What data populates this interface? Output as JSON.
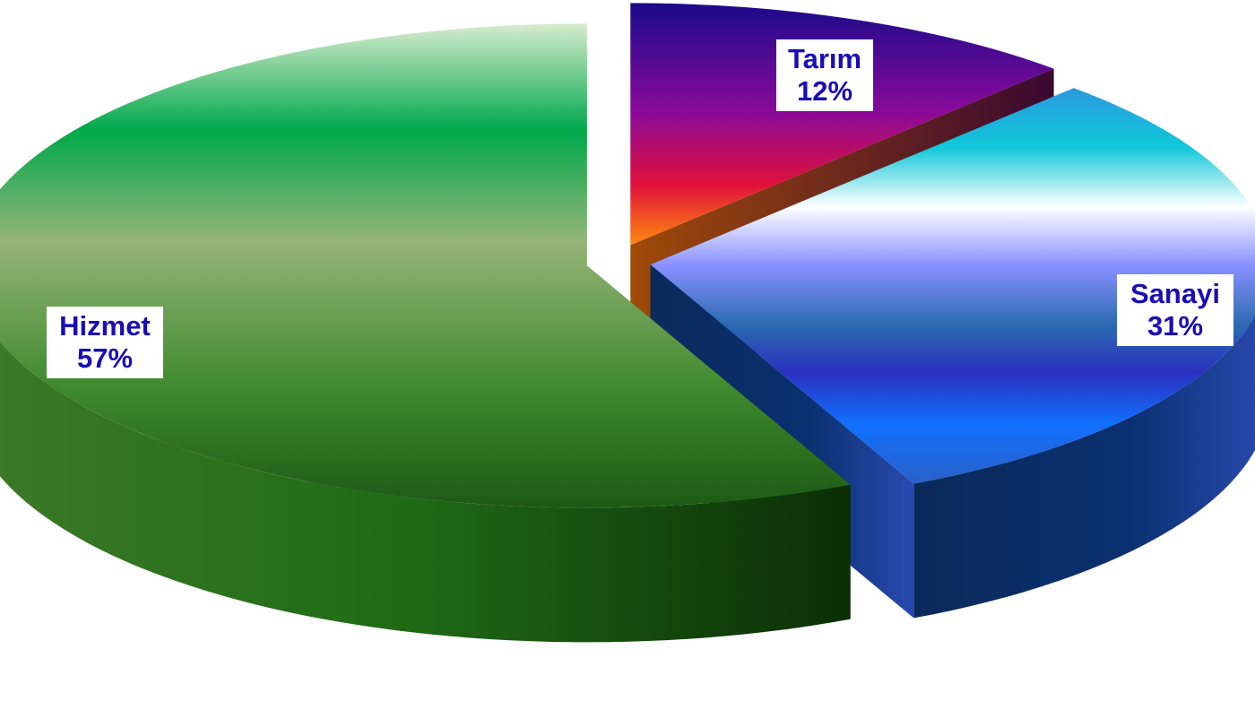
{
  "chart_data": {
    "type": "pie",
    "style": "3d-exploded",
    "slices": [
      {
        "label": "Tarım",
        "value": 12,
        "percent_label": "12%",
        "color": "#8a0aa8"
      },
      {
        "label": "Sanayi",
        "value": 31,
        "percent_label": "31%",
        "color": "#1a6fff"
      },
      {
        "label": "Hizmet",
        "value": 57,
        "percent_label": "57%",
        "color": "#2f8a1f"
      }
    ],
    "label_color": "#1a0db5"
  }
}
